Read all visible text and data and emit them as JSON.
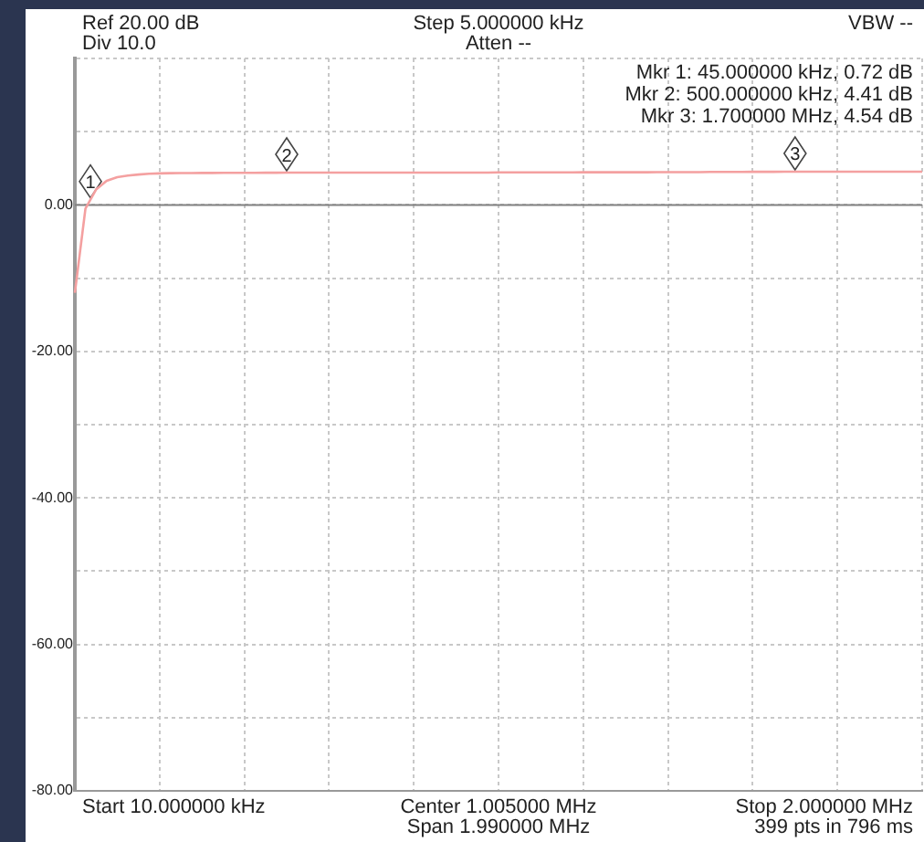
{
  "chart_data": {
    "type": "line",
    "title": "Ref 20.00 dB",
    "annotations": [
      "Div 10.0",
      "Step 5.000000 kHz",
      "Atten --",
      "VBW --",
      "Mkr 1: 45.000000 kHz, 0.72 dB",
      "Mkr 2: 500.000000 kHz, 4.41 dB",
      "Mkr 3: 1.700000 MHz, 4.54 dB",
      "Start 10.000000 kHz",
      "Center 1.005000 MHz",
      "Span 1.990000 MHz",
      "Stop 2.000000 MHz",
      "399 pts in 796 ms",
      {
        "text": "1",
        "y": 0.72
      },
      {
        "text": "2",
        "y": 4.41
      },
      {
        "text": "3",
        "y": 4.54
      }
    ],
    "categories": [
      null,
      null,
      null,
      null,
      null,
      null,
      null,
      null,
      null,
      null,
      null,
      null,
      null,
      null,
      null,
      null,
      null,
      null,
      null,
      null,
      null,
      null,
      null,
      null,
      null,
      null,
      null,
      null,
      null,
      null,
      null,
      null,
      null,
      null,
      null,
      null,
      null,
      null,
      null,
      null,
      null,
      null,
      null,
      null,
      null,
      null,
      null,
      null,
      null,
      null,
      null,
      null,
      null,
      null,
      null,
      null,
      null,
      null,
      null,
      null,
      null,
      null,
      null,
      null,
      null,
      null,
      null,
      null,
      null,
      null,
      null,
      null,
      null,
      null,
      null,
      null,
      null,
      null,
      null,
      null,
      null
    ],
    "series": [
      {
        "color": "#f4a0a0",
        "values": [
          -12,
          -0.5,
          2.1,
          3.3,
          3.8,
          4.0,
          4.15,
          4.25,
          4.3,
          4.33,
          4.35,
          4.36,
          4.37,
          4.37,
          4.38,
          4.38,
          4.39,
          4.39,
          4.4,
          4.4,
          4.41,
          4.41,
          4.41,
          4.41,
          4.41,
          4.41,
          4.41,
          4.41,
          4.41,
          4.41,
          4.42,
          4.42,
          4.42,
          4.42,
          4.42,
          4.42,
          4.42,
          4.42,
          4.42,
          4.42,
          4.44,
          4.44,
          4.44,
          4.44,
          4.44,
          4.44,
          4.44,
          4.44,
          4.46,
          4.46,
          4.46,
          4.46,
          4.46,
          4.46,
          4.46,
          4.48,
          4.48,
          4.48,
          4.48,
          4.48,
          4.5,
          4.5,
          4.5,
          4.5,
          4.52,
          4.52,
          4.52,
          4.53,
          4.54,
          4.54,
          4.54,
          4.54,
          4.54,
          4.54,
          4.54,
          4.54,
          4.54,
          4.54,
          4.54,
          4.54,
          4.54
        ]
      }
    ],
    "ylim": [
      -80,
      20
    ],
    "yticks": [
      {
        "value": -80,
        "label": "-80.00"
      },
      {
        "value": -70,
        "label": null
      },
      {
        "value": -60,
        "label": "-60.00"
      },
      {
        "value": -50,
        "label": null
      },
      {
        "value": -40,
        "label": "-40.00"
      },
      {
        "value": -30,
        "label": null
      },
      {
        "value": -20,
        "label": "-20.00"
      },
      {
        "value": -10,
        "label": null
      },
      {
        "value": 0,
        "label": "0.00"
      },
      {
        "value": 10,
        "label": null
      },
      {
        "value": 20,
        "label": null
      }
    ],
    "ref_lines": [
      {
        "axis": "y",
        "value": 0,
        "color": "#808080"
      }
    ],
    "grid": true,
    "tick_labels": "y",
    "marker": "none",
    "line_style": "solid",
    "legend": false
  }
}
